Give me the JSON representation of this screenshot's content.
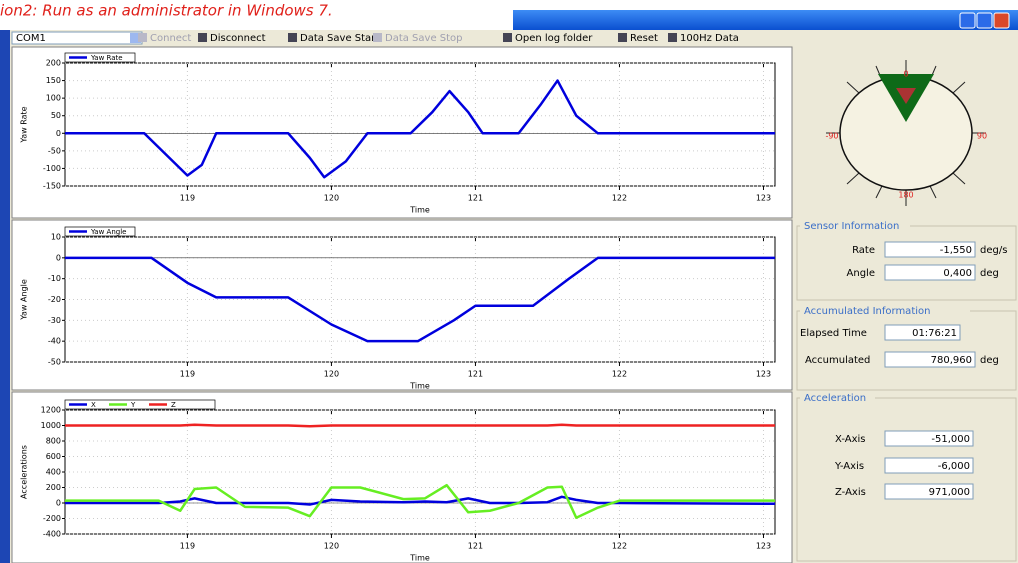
{
  "note_text": "ion2: Run as an administrator in Windows 7.",
  "toolbar": {
    "port": "COM1",
    "buttons": [
      "Connect",
      "Disconnect",
      "Data Save Start",
      "Data Save Stop",
      "Open log folder",
      "Reset",
      "100Hz Data"
    ]
  },
  "chart_data": [
    {
      "type": "line",
      "ylabel": "Yaw Rate",
      "xlabel": "Time",
      "xlim": [
        118.15,
        123.08
      ],
      "ylim": [
        -150,
        200
      ],
      "xticks": [
        119,
        120,
        121,
        122,
        123
      ],
      "yticks": [
        200,
        150,
        100,
        50,
        0,
        -50,
        -100,
        -150
      ],
      "grid": true,
      "x": [
        118.15,
        118.7,
        118.85,
        119.0,
        119.1,
        119.2,
        119.7,
        119.85,
        119.95,
        120.1,
        120.25,
        120.55,
        120.7,
        120.82,
        120.95,
        121.05,
        121.3,
        121.45,
        121.57,
        121.7,
        121.85,
        123.08
      ],
      "series": [
        {
          "name": "Yaw Rate",
          "color": "#0000dd",
          "values": [
            0,
            0,
            -60,
            -120,
            -90,
            0,
            0,
            -70,
            -125,
            -80,
            0,
            0,
            60,
            120,
            60,
            0,
            0,
            80,
            150,
            50,
            0,
            0
          ]
        }
      ]
    },
    {
      "type": "line",
      "ylabel": "Yaw Angle",
      "xlabel": "Time",
      "xlim": [
        118.15,
        123.08
      ],
      "ylim": [
        -50,
        10
      ],
      "xticks": [
        119,
        120,
        121,
        122,
        123
      ],
      "yticks": [
        10,
        0,
        -10,
        -20,
        -30,
        -40,
        -50
      ],
      "grid": true,
      "x": [
        118.15,
        118.75,
        119.0,
        119.2,
        119.7,
        120.0,
        120.25,
        120.6,
        120.85,
        121.0,
        121.4,
        121.65,
        121.85,
        123.08
      ],
      "series": [
        {
          "name": "Yaw Angle",
          "color": "#0000dd",
          "values": [
            0,
            0,
            -12,
            -19,
            -19,
            -32,
            -40,
            -40,
            -30,
            -23,
            -23,
            -10,
            0,
            0
          ]
        }
      ]
    },
    {
      "type": "line",
      "ylabel": "Accelerations",
      "xlabel": "Time",
      "xlim": [
        118.15,
        123.08
      ],
      "ylim": [
        -400,
        1200
      ],
      "xticks": [
        119,
        120,
        121,
        122,
        123
      ],
      "yticks": [
        1200,
        1000,
        800,
        600,
        400,
        200,
        0,
        -200,
        -400
      ],
      "grid": true,
      "x": [
        118.15,
        118.8,
        118.95,
        119.05,
        119.2,
        119.4,
        119.7,
        119.85,
        120.0,
        120.2,
        120.5,
        120.65,
        120.8,
        120.95,
        121.1,
        121.3,
        121.5,
        121.6,
        121.7,
        121.85,
        122.0,
        123.08
      ],
      "series": [
        {
          "name": "X",
          "color": "#0000dd",
          "values": [
            0,
            0,
            20,
            60,
            0,
            0,
            0,
            -20,
            40,
            20,
            10,
            20,
            10,
            60,
            0,
            0,
            10,
            80,
            40,
            0,
            0,
            -10
          ]
        },
        {
          "name": "Y",
          "color": "#66ee22",
          "values": [
            30,
            30,
            -100,
            180,
            200,
            -50,
            -60,
            -170,
            200,
            200,
            50,
            60,
            230,
            -120,
            -100,
            0,
            200,
            210,
            -190,
            -60,
            30,
            30
          ]
        },
        {
          "name": "Z",
          "color": "#ee2222",
          "values": [
            1000,
            1000,
            1000,
            1010,
            1000,
            1000,
            1000,
            990,
            1000,
            1000,
            1000,
            1000,
            1000,
            1000,
            1000,
            1000,
            1000,
            1010,
            1000,
            1000,
            1000,
            1000
          ]
        }
      ]
    }
  ],
  "gauge": {
    "top": "0",
    "left": "-90",
    "right": "90",
    "bottom": "180"
  },
  "sensor_info": {
    "title": "Sensor Information",
    "rate_label": "Rate",
    "rate_value": "-1,550",
    "rate_unit": "deg/s",
    "angle_label": "Angle",
    "angle_value": "0,400",
    "angle_unit": "deg"
  },
  "accumulated_info": {
    "title": "Accumulated Information",
    "elapsed_label": "Elapsed Time",
    "elapsed_value": "01:76:21",
    "accum_label": "Accumulated",
    "accum_value": "780,960",
    "accum_unit": "deg"
  },
  "acceleration": {
    "title": "Acceleration",
    "x_label": "X-Axis",
    "x_value": "-51,000",
    "y_label": "Y-Axis",
    "y_value": "-6,000",
    "z_label": "Z-Axis",
    "z_value": "971,000"
  }
}
